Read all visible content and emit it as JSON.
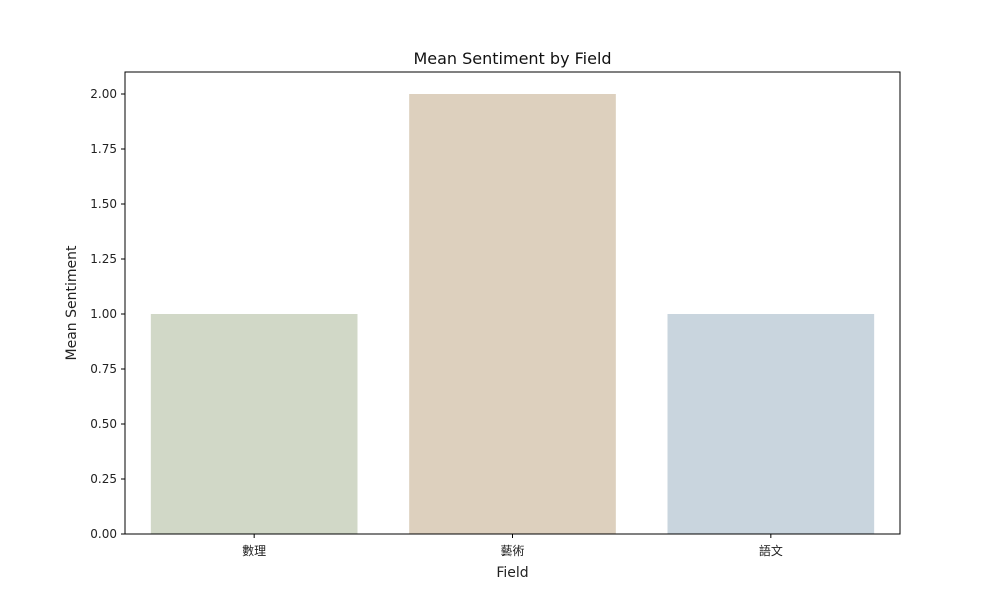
{
  "chart_data": {
    "type": "bar",
    "title": "Mean Sentiment by Field",
    "xlabel": "Field",
    "ylabel": "Mean Sentiment",
    "categories": [
      "數理",
      "藝術",
      "語文"
    ],
    "values": [
      1.0,
      2.0,
      1.0
    ],
    "colors": [
      "#d1d8c7",
      "#ddd0be",
      "#c9d5de"
    ],
    "ylim": [
      0,
      2.1
    ],
    "yticks": [
      "0.00",
      "0.25",
      "0.50",
      "0.75",
      "1.00",
      "1.25",
      "1.50",
      "1.75",
      "2.00"
    ],
    "grid": false,
    "legend": "none"
  }
}
